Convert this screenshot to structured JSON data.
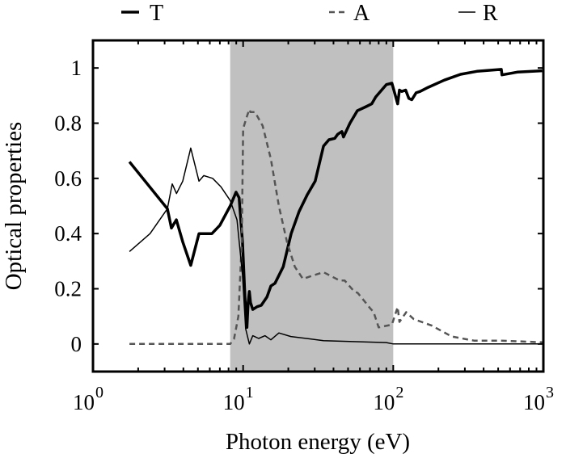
{
  "chart_data": {
    "type": "line",
    "xlabel": "Photon energy (eV)",
    "ylabel": "Optical properties",
    "xscale": "log",
    "xlim": [
      1,
      1000
    ],
    "ylim": [
      -0.1,
      1.1
    ],
    "grid": false,
    "legend_position": "top (outside, horizontal)",
    "shaded_region": {
      "x": [
        8.2,
        100
      ],
      "color": "#c0c0c0"
    },
    "xticks": [
      {
        "base": "10",
        "exp": "0",
        "value": 1
      },
      {
        "base": "10",
        "exp": "1",
        "value": 10
      },
      {
        "base": "10",
        "exp": "2",
        "value": 100
      },
      {
        "base": "10",
        "exp": "3",
        "value": 1000
      }
    ],
    "yticks": [
      {
        "label": "0",
        "value": 0
      },
      {
        "label": "0.2",
        "value": 0.2
      },
      {
        "label": "0.4",
        "value": 0.4
      },
      {
        "label": "0.6",
        "value": 0.6
      },
      {
        "label": "0.8",
        "value": 0.8
      },
      {
        "label": "1",
        "value": 1
      }
    ],
    "series": [
      {
        "name": "T",
        "color": "#000000",
        "style": "solid-thick",
        "x": [
          1.75,
          3.13,
          3.33,
          3.59,
          3.96,
          4.48,
          5.08,
          5.33,
          5.67,
          6.2,
          7.0,
          8.2,
          8.97,
          9.4,
          9.9,
          10.3,
          10.6,
          10.8,
          11.0,
          11.2,
          11.6,
          12.4,
          13.2,
          14.4,
          15.3,
          16.3,
          18.5,
          20.9,
          23.6,
          26.7,
          30.2,
          34.3,
          37.3,
          40.8,
          42.7,
          45.5,
          46.6,
          51.5,
          57.6,
          66,
          71.9,
          76.5,
          83.7,
          90,
          98,
          101,
          107,
          110,
          114,
          121,
          127,
          133,
          142,
          151,
          171,
          219,
          281,
          361,
          525,
          530,
          670,
          980
        ],
        "y": [
          0.66,
          0.49,
          0.42,
          0.45,
          0.37,
          0.285,
          0.4,
          0.4,
          0.4,
          0.4,
          0.43,
          0.5,
          0.55,
          0.53,
          0.37,
          0.16,
          0.06,
          0.15,
          0.19,
          0.15,
          0.125,
          0.135,
          0.14,
          0.17,
          0.21,
          0.22,
          0.28,
          0.4,
          0.48,
          0.54,
          0.59,
          0.717,
          0.74,
          0.745,
          0.76,
          0.77,
          0.75,
          0.8,
          0.845,
          0.86,
          0.87,
          0.895,
          0.92,
          0.94,
          0.945,
          0.92,
          0.87,
          0.92,
          0.915,
          0.92,
          0.89,
          0.885,
          0.91,
          0.915,
          0.93,
          0.956,
          0.977,
          0.988,
          0.995,
          0.975,
          0.985,
          0.99
        ]
      },
      {
        "name": "A",
        "color": "#555555",
        "style": "dashed",
        "x": [
          1.75,
          8.2,
          8.7,
          9.3,
          9.8,
          10.0,
          10.6,
          11.0,
          11.2,
          12.0,
          13.5,
          15.3,
          17.3,
          19.6,
          22.1,
          25,
          30,
          34.3,
          44,
          47.5,
          55,
          58,
          70,
          74,
          80,
          98,
          107,
          110,
          122,
          137,
          180,
          245,
          345,
          520,
          990
        ],
        "y": [
          0,
          0,
          0.018,
          0.1,
          0.37,
          0.78,
          0.825,
          0.85,
          0.84,
          0.84,
          0.79,
          0.67,
          0.5,
          0.37,
          0.28,
          0.236,
          0.25,
          0.26,
          0.23,
          0.23,
          0.19,
          0.185,
          0.13,
          0.115,
          0.06,
          0.07,
          0.134,
          0.08,
          0.115,
          0.09,
          0.067,
          0.027,
          0.012,
          0.012,
          0.006
        ]
      },
      {
        "name": "R",
        "color": "#000000",
        "style": "solid-thin",
        "x": [
          1.75,
          2.4,
          3.13,
          3.37,
          3.6,
          3.96,
          4.48,
          5.08,
          5.47,
          6.27,
          7.1,
          8.2,
          9.1,
          9.9,
          10.4,
          11.0,
          11.6,
          12.7,
          14.0,
          15.3,
          17.3,
          20.8,
          34.3,
          90,
          100,
          1000
        ],
        "y": [
          0.335,
          0.4,
          0.49,
          0.58,
          0.545,
          0.59,
          0.71,
          0.59,
          0.61,
          0.6,
          0.57,
          0.52,
          0.45,
          0.25,
          0.055,
          0.0,
          0.03,
          0.02,
          0.03,
          0.015,
          0.04,
          0.027,
          0.012,
          0.005,
          0.0,
          0.0
        ]
      }
    ]
  }
}
